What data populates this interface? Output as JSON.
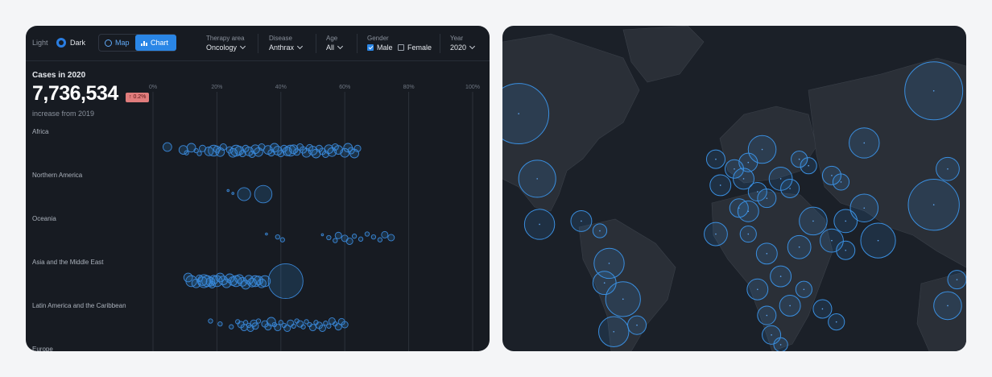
{
  "toolbar": {
    "theme_light": "Light",
    "theme_dark": "Dark",
    "view_map": "Map",
    "view_chart": "Chart",
    "filters": {
      "therapy_area": {
        "label": "Therapy area",
        "value": "Oncology"
      },
      "disease": {
        "label": "Disease",
        "value": "Anthrax"
      },
      "age": {
        "label": "Age",
        "value": "All"
      },
      "gender": {
        "label": "Gender",
        "male": "Male",
        "female": "Female",
        "male_checked": true,
        "female_checked": false
      },
      "year": {
        "label": "Year",
        "value": "2020"
      }
    }
  },
  "stat": {
    "title": "Cases in 2020",
    "value": "7,736,534",
    "badge": "↑ 0.2%",
    "subtitle": "increase from 2019"
  },
  "colors": {
    "accent": "#2a86e6",
    "bubble_stroke": "#3a86d6",
    "badge": "#e07c7c",
    "background": "#171b22"
  },
  "chart_data": {
    "type": "scatter",
    "x_ticks": [
      "0%",
      "20%",
      "40%",
      "60%",
      "80%",
      "100%"
    ],
    "xlim": [
      0,
      100
    ],
    "categories": [
      "Africa",
      "Northern America",
      "Oceania",
      "Asia and the Middle East",
      "Latin America and the Caribbean",
      "Europe"
    ],
    "series": [
      {
        "category": "Africa",
        "points": [
          [
            4.5,
            2
          ],
          [
            9.5,
            2
          ],
          [
            10.5,
            1
          ],
          [
            12,
            2
          ],
          [
            13.5,
            1
          ],
          [
            14.5,
            1
          ],
          [
            15.5,
            1.5
          ],
          [
            17.5,
            2
          ],
          [
            19,
            2.5
          ],
          [
            20,
            1.5
          ],
          [
            21,
            2
          ],
          [
            22,
            1.5
          ],
          [
            24,
            1.5
          ],
          [
            25,
            2
          ],
          [
            26,
            2.5
          ],
          [
            27,
            2
          ],
          [
            28,
            1.5
          ],
          [
            29,
            1.5
          ],
          [
            30,
            2
          ],
          [
            31,
            1.5
          ],
          [
            32,
            2
          ],
          [
            33,
            2
          ],
          [
            34,
            1.5
          ],
          [
            36,
            2
          ],
          [
            37,
            1.5
          ],
          [
            38,
            2
          ],
          [
            39,
            2
          ],
          [
            40,
            1.5
          ],
          [
            41,
            1.5
          ],
          [
            42,
            2
          ],
          [
            43,
            2.5
          ],
          [
            44,
            2
          ],
          [
            45,
            1.5
          ],
          [
            46,
            1.5
          ],
          [
            47,
            1.5
          ],
          [
            48,
            2
          ],
          [
            49,
            1.5
          ],
          [
            50,
            2
          ],
          [
            51,
            2
          ],
          [
            52,
            1.5
          ],
          [
            53,
            1.5
          ],
          [
            54,
            1.5
          ],
          [
            55,
            2
          ],
          [
            56,
            2
          ],
          [
            57,
            1.5
          ],
          [
            58,
            2
          ],
          [
            60,
            2
          ],
          [
            61,
            2
          ],
          [
            62,
            1.5
          ],
          [
            63,
            2
          ],
          [
            64,
            1.5
          ]
        ]
      },
      {
        "category": "Northern America",
        "points": [
          [
            23.5,
            0.5
          ],
          [
            25,
            0.5
          ],
          [
            28.5,
            3
          ],
          [
            34.5,
            4
          ]
        ]
      },
      {
        "category": "Oceania",
        "points": [
          [
            35.5,
            0.5
          ],
          [
            39,
            1
          ],
          [
            40.5,
            1
          ],
          [
            53,
            0.5
          ],
          [
            55,
            1
          ],
          [
            57,
            1
          ],
          [
            58,
            1.5
          ],
          [
            60,
            1.5
          ],
          [
            61.5,
            1.5
          ],
          [
            63,
            1
          ],
          [
            65,
            1
          ],
          [
            67,
            1
          ],
          [
            69,
            1
          ],
          [
            71,
            1
          ],
          [
            72.5,
            1.5
          ],
          [
            74.5,
            1.5
          ]
        ]
      },
      {
        "category": "Asia and the Middle East",
        "points": [
          [
            11,
            2
          ],
          [
            12,
            2.5
          ],
          [
            13.5,
            2
          ],
          [
            14.5,
            1.5
          ],
          [
            15.5,
            2
          ],
          [
            16,
            3
          ],
          [
            17,
            2.5
          ],
          [
            18,
            2
          ],
          [
            18.5,
            1.5
          ],
          [
            19,
            2
          ],
          [
            20,
            2.5
          ],
          [
            21,
            2
          ],
          [
            22,
            2
          ],
          [
            23,
            2
          ],
          [
            24,
            2
          ],
          [
            25,
            2
          ],
          [
            26,
            2.5
          ],
          [
            27,
            2
          ],
          [
            28,
            2
          ],
          [
            29,
            2
          ],
          [
            30,
            2
          ],
          [
            31,
            2
          ],
          [
            32,
            2.5
          ],
          [
            33,
            2
          ],
          [
            34,
            2
          ],
          [
            35,
            2.5
          ],
          [
            41.5,
            8
          ]
        ]
      },
      {
        "category": "Latin America and the Caribbean",
        "points": [
          [
            18,
            1
          ],
          [
            21,
            1
          ],
          [
            24.5,
            1
          ],
          [
            26.5,
            1
          ],
          [
            27.5,
            1.5
          ],
          [
            28.5,
            1.5
          ],
          [
            29,
            1
          ],
          [
            30,
            1
          ],
          [
            30.5,
            1.5
          ],
          [
            31.5,
            1.5
          ],
          [
            32,
            1.5
          ],
          [
            33,
            1
          ],
          [
            35,
            1.5
          ],
          [
            36,
            1.5
          ],
          [
            37,
            2
          ],
          [
            38,
            1
          ],
          [
            39,
            1.5
          ],
          [
            40,
            1
          ],
          [
            41,
            1
          ],
          [
            42,
            1.5
          ],
          [
            43,
            1.5
          ],
          [
            44,
            1
          ],
          [
            45,
            1
          ],
          [
            46,
            1.5
          ],
          [
            47,
            1
          ],
          [
            48,
            1
          ],
          [
            49,
            1
          ],
          [
            50,
            1.5
          ],
          [
            51,
            1
          ],
          [
            52,
            1.5
          ],
          [
            53,
            1.5
          ],
          [
            54,
            1
          ],
          [
            55,
            1
          ],
          [
            56,
            1.5
          ],
          [
            57,
            1
          ],
          [
            58,
            1.5
          ],
          [
            59,
            1.5
          ],
          [
            60,
            1.5
          ]
        ]
      },
      {
        "category": "Europe",
        "points": []
      }
    ]
  },
  "map_data": {
    "bubbles": [
      [
        0.035,
        0.27,
        0.13
      ],
      [
        0.93,
        0.2,
        0.125
      ],
      [
        0.075,
        0.47,
        0.08
      ],
      [
        0.08,
        0.61,
        0.065
      ],
      [
        0.17,
        0.6,
        0.045
      ],
      [
        0.21,
        0.63,
        0.03
      ],
      [
        0.23,
        0.73,
        0.065
      ],
      [
        0.22,
        0.79,
        0.05
      ],
      [
        0.26,
        0.84,
        0.075
      ],
      [
        0.24,
        0.94,
        0.065
      ],
      [
        0.29,
        0.92,
        0.04
      ],
      [
        0.46,
        0.41,
        0.04
      ],
      [
        0.47,
        0.49,
        0.045
      ],
      [
        0.52,
        0.47,
        0.045
      ],
      [
        0.5,
        0.44,
        0.04
      ],
      [
        0.53,
        0.42,
        0.04
      ],
      [
        0.56,
        0.38,
        0.06
      ],
      [
        0.6,
        0.47,
        0.05
      ],
      [
        0.62,
        0.5,
        0.04
      ],
      [
        0.55,
        0.51,
        0.04
      ],
      [
        0.57,
        0.53,
        0.04
      ],
      [
        0.51,
        0.56,
        0.04
      ],
      [
        0.53,
        0.57,
        0.045
      ],
      [
        0.67,
        0.6,
        0.06
      ],
      [
        0.74,
        0.6,
        0.05
      ],
      [
        0.78,
        0.56,
        0.06
      ],
      [
        0.81,
        0.66,
        0.075
      ],
      [
        0.93,
        0.55,
        0.11
      ],
      [
        0.96,
        0.44,
        0.05
      ],
      [
        0.78,
        0.36,
        0.065
      ],
      [
        0.66,
        0.43,
        0.035
      ],
      [
        0.64,
        0.41,
        0.035
      ],
      [
        0.71,
        0.46,
        0.04
      ],
      [
        0.73,
        0.48,
        0.035
      ],
      [
        0.46,
        0.64,
        0.05
      ],
      [
        0.53,
        0.64,
        0.035
      ],
      [
        0.57,
        0.7,
        0.045
      ],
      [
        0.64,
        0.68,
        0.05
      ],
      [
        0.71,
        0.66,
        0.05
      ],
      [
        0.74,
        0.69,
        0.04
      ],
      [
        0.6,
        0.77,
        0.045
      ],
      [
        0.55,
        0.81,
        0.045
      ],
      [
        0.62,
        0.86,
        0.045
      ],
      [
        0.65,
        0.81,
        0.035
      ],
      [
        0.69,
        0.87,
        0.04
      ],
      [
        0.72,
        0.91,
        0.035
      ],
      [
        0.58,
        0.95,
        0.04
      ],
      [
        0.6,
        0.98,
        0.03
      ],
      [
        0.57,
        0.89,
        0.04
      ],
      [
        0.96,
        0.86,
        0.06
      ],
      [
        0.98,
        0.78,
        0.04
      ]
    ]
  }
}
